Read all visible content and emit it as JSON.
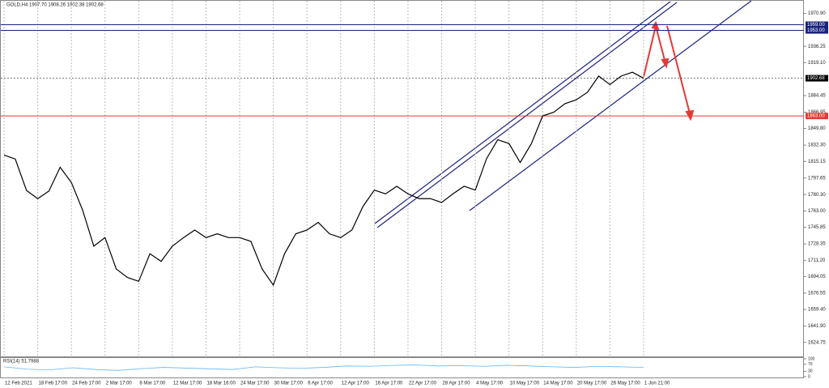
{
  "chart_data": {
    "type": "line",
    "title": "GOLD,H4 1907.70 1908.26 1902.38 1902.68",
    "color": "#000000",
    "categories": [
      "12 Feb 2021",
      null,
      null,
      "18 Feb 17:00",
      null,
      null,
      "24 Feb 17:00",
      null,
      null,
      "2 Mar 17:00",
      null,
      null,
      "8 Mar 17:00",
      null,
      null,
      "12 Mar 17:00",
      null,
      null,
      "18 Mar 16:00",
      null,
      null,
      "24 Mar 17:00",
      null,
      null,
      "30 Mar 17:00",
      null,
      null,
      "6 Apr 17:00",
      null,
      null,
      "12 Apr 17:00",
      null,
      null,
      "16 Apr 17:00",
      null,
      null,
      "22 Apr 17:00",
      null,
      null,
      "28 Apr 17:00",
      null,
      null,
      "4 May 17:00",
      null,
      null,
      "10 May 17:00",
      null,
      null,
      "14 May 17:00",
      null,
      null,
      "20 May 17:00",
      null,
      null,
      "26 May 17:00",
      null,
      null,
      "1 Jun 21:00"
    ],
    "values": [
      1821.8,
      1817.7,
      1784.6,
      1776,
      1784,
      1809,
      1793,
      1764,
      1726,
      1735,
      1702,
      1693,
      1689,
      1718,
      1710,
      1726,
      1735,
      1743,
      1735,
      1739,
      1735,
      1735,
      1731,
      1702,
      1685,
      1718,
      1739,
      1743,
      1751,
      1739,
      1735,
      1743,
      1768,
      1785,
      1781,
      1789,
      1781,
      1776,
      1776,
      1772,
      1781,
      1789,
      1785,
      1818,
      1838,
      1834,
      1814,
      1834,
      1863,
      1867,
      1876,
      1880,
      1888,
      1905,
      1896,
      1905,
      1909,
      1902.68
    ],
    "ylim": [
      1610,
      1985
    ],
    "yticks": [
      {
        "value": 1970.9,
        "label": "1970.90"
      },
      {
        "value": 1936.25,
        "label": "1936.25"
      },
      {
        "value": 1919.1,
        "label": "1919.10"
      },
      {
        "value": 1884.45,
        "label": "1884.45"
      },
      {
        "value": 1866.95,
        "label": "1866.95"
      },
      {
        "value": 1849.8,
        "label": "1849.80"
      },
      {
        "value": 1832.3,
        "label": "1832.30"
      },
      {
        "value": 1815.15,
        "label": "1815.15"
      },
      {
        "value": 1797.65,
        "label": "1797.65"
      },
      {
        "value": 1780.3,
        "label": "1780.30"
      },
      {
        "value": 1763,
        "label": "1763.00"
      },
      {
        "value": 1745.85,
        "label": "1745.85"
      },
      {
        "value": 1728.35,
        "label": "1728.35"
      },
      {
        "value": 1711.2,
        "label": "1711.20"
      },
      {
        "value": 1694.05,
        "label": "1694.05"
      },
      {
        "value": 1676.55,
        "label": "1676.55"
      },
      {
        "value": 1659.4,
        "label": "1659.40"
      },
      {
        "value": 1641.9,
        "label": "1641.90"
      },
      {
        "value": 1624.75,
        "label": "1624.75"
      }
    ],
    "price_lines": [
      {
        "value": 1959,
        "label": "1959.00",
        "color": "#1a237e"
      },
      {
        "value": 1953,
        "label": "1953.00",
        "color": "#1a237e"
      },
      {
        "value": 1902.68,
        "label": "1902.68",
        "color": "#000000"
      },
      {
        "value": 1863,
        "label": "1863.00",
        "color": "#e53935"
      }
    ],
    "grid": true,
    "rsi": {
      "title": "RSI(14) 51.7988",
      "color": "#64b5f6",
      "ylim": [
        0,
        100
      ],
      "yticks": [
        100,
        70,
        30,
        0
      ],
      "values": [
        55,
        42,
        38,
        50,
        40,
        35,
        45,
        52,
        48,
        44,
        40,
        55,
        50,
        47,
        52,
        60,
        58,
        63,
        66,
        60,
        62,
        58,
        64,
        60,
        55,
        52,
        58,
        55,
        51.7988
      ]
    }
  }
}
